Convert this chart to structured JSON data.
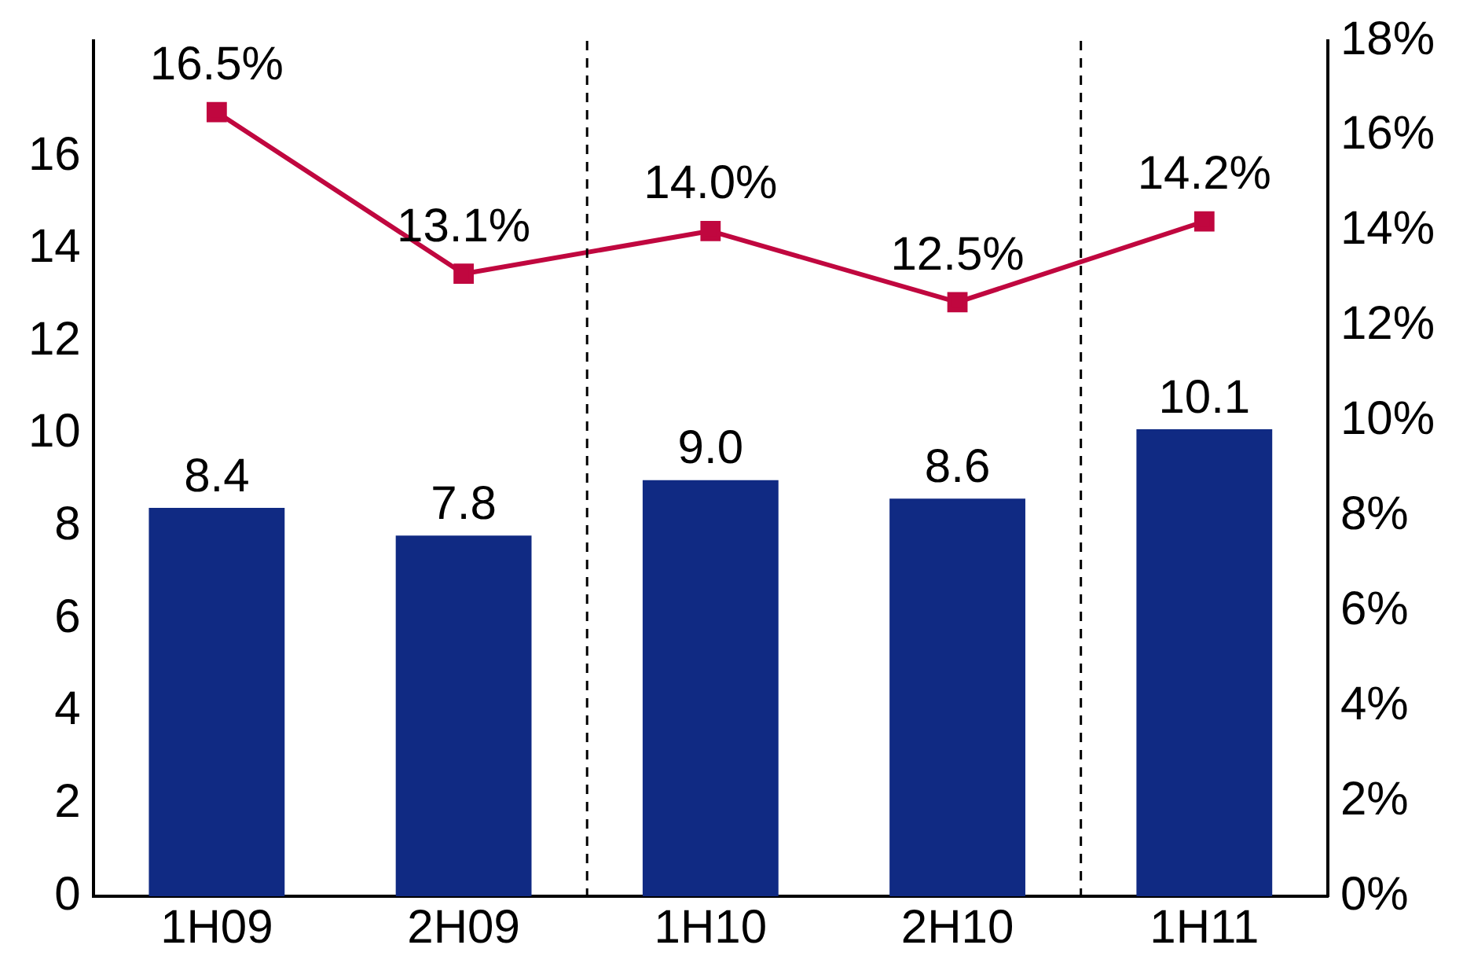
{
  "chart_data": {
    "type": "bar",
    "categories": [
      "1H09",
      "2H09",
      "1H10",
      "2H10",
      "1H11"
    ],
    "series": [
      {
        "color": "#102a83",
        "values": [
          8.4,
          7.8,
          9.0,
          8.6,
          10.1
        ],
        "value_labels": [
          "8.4",
          "7.8",
          "9.0",
          "8.6",
          "10.1"
        ]
      },
      {
        "type": "line",
        "axis": "y2",
        "color": "#c0073f",
        "marker": "square",
        "values": [
          16.5,
          13.1,
          14.0,
          12.5,
          14.2
        ],
        "value_labels": [
          "16.5%",
          "13.1%",
          "14.0%",
          "12.5%",
          "14.2%"
        ]
      }
    ],
    "ylim": [
      0,
      18.5
    ],
    "yticks": [
      0,
      2,
      4,
      6,
      8,
      10,
      12,
      14,
      16
    ],
    "y2lim": [
      0,
      18
    ],
    "y2ticks": [
      {
        "value": 0,
        "label": "0%"
      },
      {
        "value": 2,
        "label": "2%"
      },
      {
        "value": 4,
        "label": "4%"
      },
      {
        "value": 6,
        "label": "6%"
      },
      {
        "value": 8,
        "label": "8%"
      },
      {
        "value": 10,
        "label": "10%"
      },
      {
        "value": 12,
        "label": "12%"
      },
      {
        "value": 14,
        "label": "14%"
      },
      {
        "value": 16,
        "label": "16%"
      },
      {
        "value": 18,
        "label": "18%"
      }
    ],
    "grid": false,
    "legend": false
  }
}
